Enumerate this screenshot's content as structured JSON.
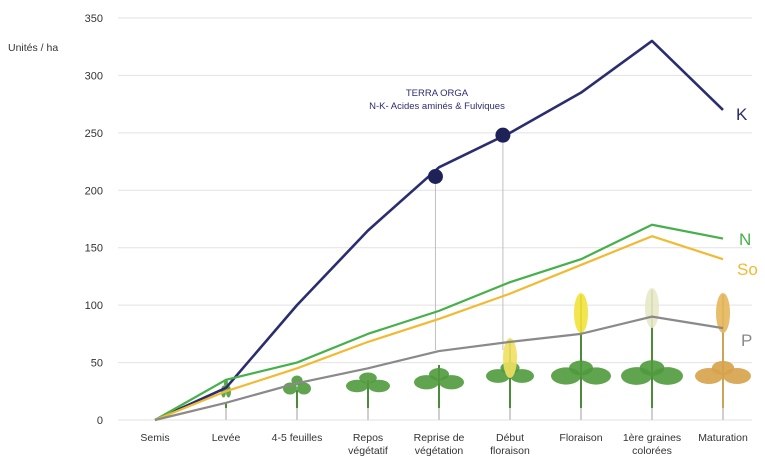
{
  "chart_data": {
    "type": "line",
    "ylabel": "Unités / ha",
    "ylim": [
      0,
      350
    ],
    "yticks": [
      0,
      50,
      100,
      150,
      200,
      250,
      300,
      350
    ],
    "grid": true,
    "categories": [
      [
        "Semis"
      ],
      [
        "Levée"
      ],
      [
        "4-5 feuilles"
      ],
      [
        "Repos",
        "végétatif"
      ],
      [
        "Reprise de",
        "végétation"
      ],
      [
        "Début",
        "floraison"
      ],
      [
        "Floraison"
      ],
      [
        "1ère graines",
        "colorées"
      ],
      [
        "Maturation"
      ]
    ],
    "series": [
      {
        "name": "K",
        "color": "#2b2d6e",
        "values": [
          0,
          28,
          100,
          165,
          220,
          250,
          285,
          330,
          270
        ]
      },
      {
        "name": "N",
        "color": "#46b04a",
        "values": [
          0,
          35,
          50,
          75,
          95,
          120,
          140,
          170,
          158
        ]
      },
      {
        "name": "So",
        "color": "#f2b933",
        "values": [
          0,
          25,
          45,
          68,
          88,
          110,
          135,
          160,
          140
        ]
      },
      {
        "name": "P",
        "color": "#8a8a8a",
        "values": [
          0,
          15,
          32,
          45,
          60,
          68,
          75,
          90,
          80
        ]
      }
    ],
    "markers": [
      {
        "x": 3.95,
        "y": 212
      },
      {
        "x": 4.9,
        "y": 248
      }
    ],
    "annotation": {
      "lines": [
        "TERRA ORGA",
        "N-K- Acides aminés & Fulviques"
      ]
    }
  }
}
